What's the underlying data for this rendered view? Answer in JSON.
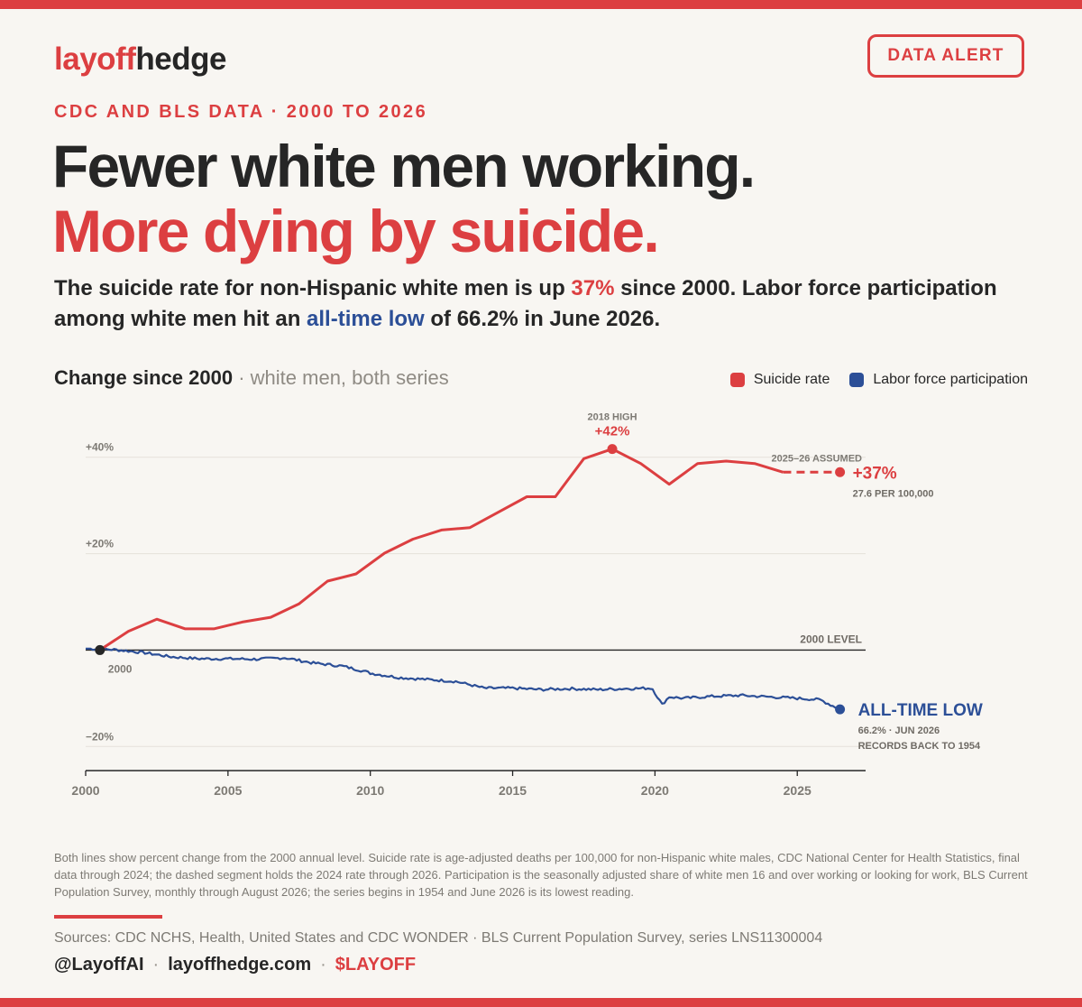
{
  "colors": {
    "red": "#dc3f41",
    "blue": "#2c4f97",
    "dark": "#262626",
    "grey": "#8f8b84"
  },
  "brand": {
    "logo_part1": "layoff",
    "logo_part2": "hedge",
    "alert_label": "DATA ALERT"
  },
  "header": {
    "kicker": "CDC AND BLS DATA · 2000 TO 2026",
    "headline_line1": "Fewer white men working.",
    "headline_line2": "More dying by suicide.",
    "sub_part1": "The suicide rate for non-Hispanic white men is up ",
    "sub_highlight1": "37%",
    "sub_part2": " since 2000. Labor force participation among white men hit an ",
    "sub_highlight2": "all-time low",
    "sub_part3": " of 66.2% in June 2026."
  },
  "chart_header": {
    "title": "Change since 2000",
    "subtitle": " · white men, both series"
  },
  "chart_data": {
    "type": "line",
    "title": "Change since 2000",
    "xlim": [
      2000,
      2027.4
    ],
    "ylim": [
      -25,
      45
    ],
    "y_ticks": [
      {
        "v": 40,
        "label": "+40%"
      },
      {
        "v": 20,
        "label": "+20%"
      },
      {
        "v": -20,
        "label": "−20%"
      }
    ],
    "x_ticks": [
      2000,
      2005,
      2010,
      2015,
      2020,
      2025
    ],
    "grid": true,
    "legend_position": "top-right",
    "series": [
      {
        "name": "Suicide rate",
        "color": "#dc3f41",
        "x": [
          2000.5,
          2001.5,
          2002.5,
          2003.5,
          2004.5,
          2005.5,
          2006.5,
          2007.5,
          2008.5,
          2009.5,
          2010.5,
          2011.5,
          2012.5,
          2013.5,
          2014.5,
          2015.5,
          2016.5,
          2017.5,
          2018.5,
          2019.5,
          2020.5,
          2021.5,
          2022.5,
          2023.5,
          2024.5
        ],
        "y": [
          0,
          3.9,
          6.4,
          4.4,
          4.4,
          5.8,
          6.8,
          9.6,
          14.3,
          15.8,
          20.1,
          23,
          24.9,
          25.4,
          28.6,
          31.8,
          31.8,
          39.7,
          41.7,
          38.7,
          34.4,
          38.7,
          39.2,
          38.7,
          36.9
        ],
        "projected": {
          "x": [
            2024.5,
            2026.5
          ],
          "y": [
            36.9,
            36.9
          ]
        }
      },
      {
        "name": "Labor force participation",
        "color": "#2c4f97",
        "anchors": [
          [
            2000.0,
            0.3
          ],
          [
            2000.5,
            0.2
          ],
          [
            2001.0,
            0.1
          ],
          [
            2002.0,
            -0.5
          ],
          [
            2003.0,
            -1.4
          ],
          [
            2004.0,
            -1.8
          ],
          [
            2005.0,
            -1.8
          ],
          [
            2006.0,
            -1.9
          ],
          [
            2007.0,
            -1.6
          ],
          [
            2008.0,
            -2.7
          ],
          [
            2009.0,
            -3.3
          ],
          [
            2009.8,
            -4.4
          ],
          [
            2010.0,
            -4.8
          ],
          [
            2011.0,
            -5.7
          ],
          [
            2012.0,
            -6.1
          ],
          [
            2013.0,
            -6.5
          ],
          [
            2014.0,
            -7.9
          ],
          [
            2015.0,
            -7.9
          ],
          [
            2016.0,
            -8.2
          ],
          [
            2017.0,
            -8.0
          ],
          [
            2018.0,
            -8.2
          ],
          [
            2019.0,
            -8.0
          ],
          [
            2019.9,
            -7.9
          ],
          [
            2020.25,
            -11.3
          ],
          [
            2020.5,
            -9.7
          ],
          [
            2021.0,
            -10.0
          ],
          [
            2022.0,
            -9.6
          ],
          [
            2023.0,
            -9.4
          ],
          [
            2024.0,
            -9.7
          ],
          [
            2025.0,
            -10.0
          ],
          [
            2025.8,
            -10.3
          ],
          [
            2026.5,
            -12.3
          ]
        ]
      }
    ],
    "annotations": {
      "peak_label": "2018 HIGH",
      "peak_value": "+42%",
      "assumed_label": "2025–26 ASSUMED",
      "end_value": "+37%",
      "end_sub": "27.6 PER 100,000",
      "base_label": "2000 LEVEL",
      "start_label": "2000",
      "low_title": "ALL-TIME LOW",
      "low_sub1": "66.2% · JUN 2026",
      "low_sub2": "RECORDS BACK TO 1954"
    }
  },
  "footer": {
    "note": "Both lines show percent change from the 2000 annual level. Suicide rate is age-adjusted deaths per 100,000 for non-Hispanic white males, CDC National Center for Health Statistics, final data through 2024; the dashed segment holds the 2024 rate through 2026. Participation is the seasonally adjusted share of white men 16 and over working or looking for work, BLS Current Population Survey, monthly through August 2026; the series begins in 1954 and June 2026 is its lowest reading.",
    "sources": "Sources: CDC NCHS, Health, United States and CDC WONDER · BLS Current Population Survey, series LNS11300004",
    "handle": "@LayoffAI",
    "site": "layoffhedge.com",
    "ticker": "$LAYOFF",
    "separator": "·"
  }
}
